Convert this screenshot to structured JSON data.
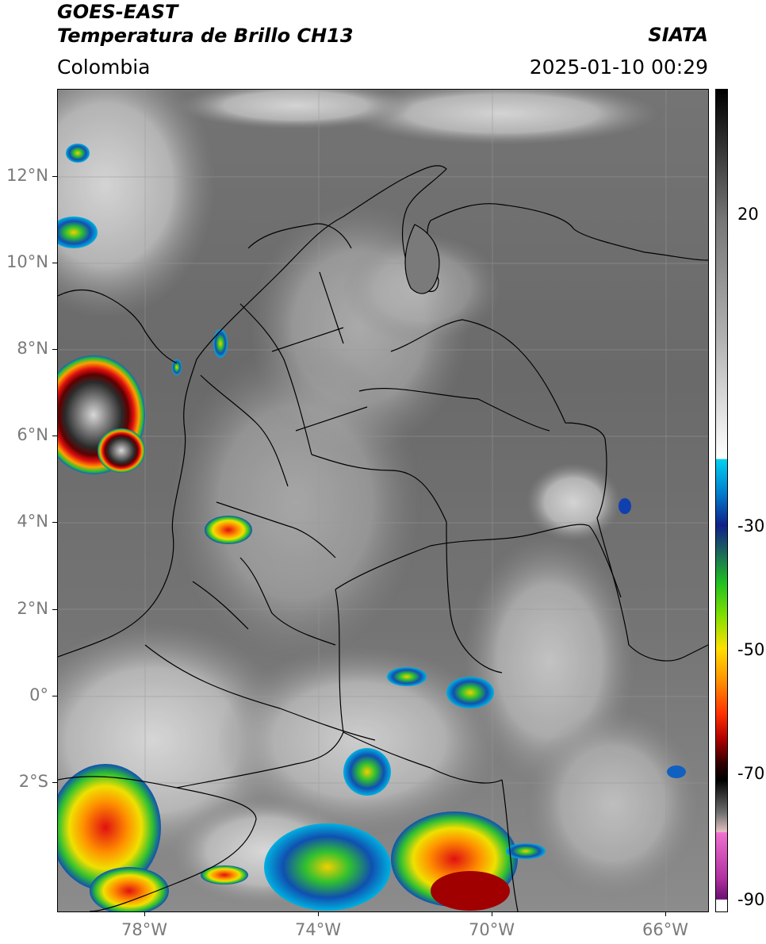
{
  "header": {
    "title_line1": "GOES-EAST",
    "title_line2": "Temperatura de Brillo CH13",
    "region": "Colombia",
    "organization": "SIATA",
    "timestamp": "2025-01-10 00:29"
  },
  "map": {
    "lat_labels": [
      "12°N",
      "10°N",
      "8°N",
      "6°N",
      "4°N",
      "2°N",
      "0°",
      "2°S"
    ],
    "lon_labels": [
      "78°W",
      "74°W",
      "70°W",
      "66°W"
    ],
    "extent": {
      "lon_min": -80,
      "lon_max": -65,
      "lat_min": -5,
      "lat_max": 14
    }
  },
  "colorbar": {
    "labels": [
      "20",
      "-30",
      "-50",
      "-70",
      "-90"
    ],
    "units": "",
    "colors": {
      "warm_top": "#000000",
      "gray_high": "#8a8a8a",
      "white_mid": "#ffffff",
      "cyan": "#00c8ff",
      "blue": "#1030a0",
      "green": "#20c020",
      "yellow": "#ffe000",
      "orange": "#ff8000",
      "red": "#e00000",
      "dark_red": "#400000",
      "magenta": "#d050c0",
      "purple": "#7a1a7a"
    }
  }
}
